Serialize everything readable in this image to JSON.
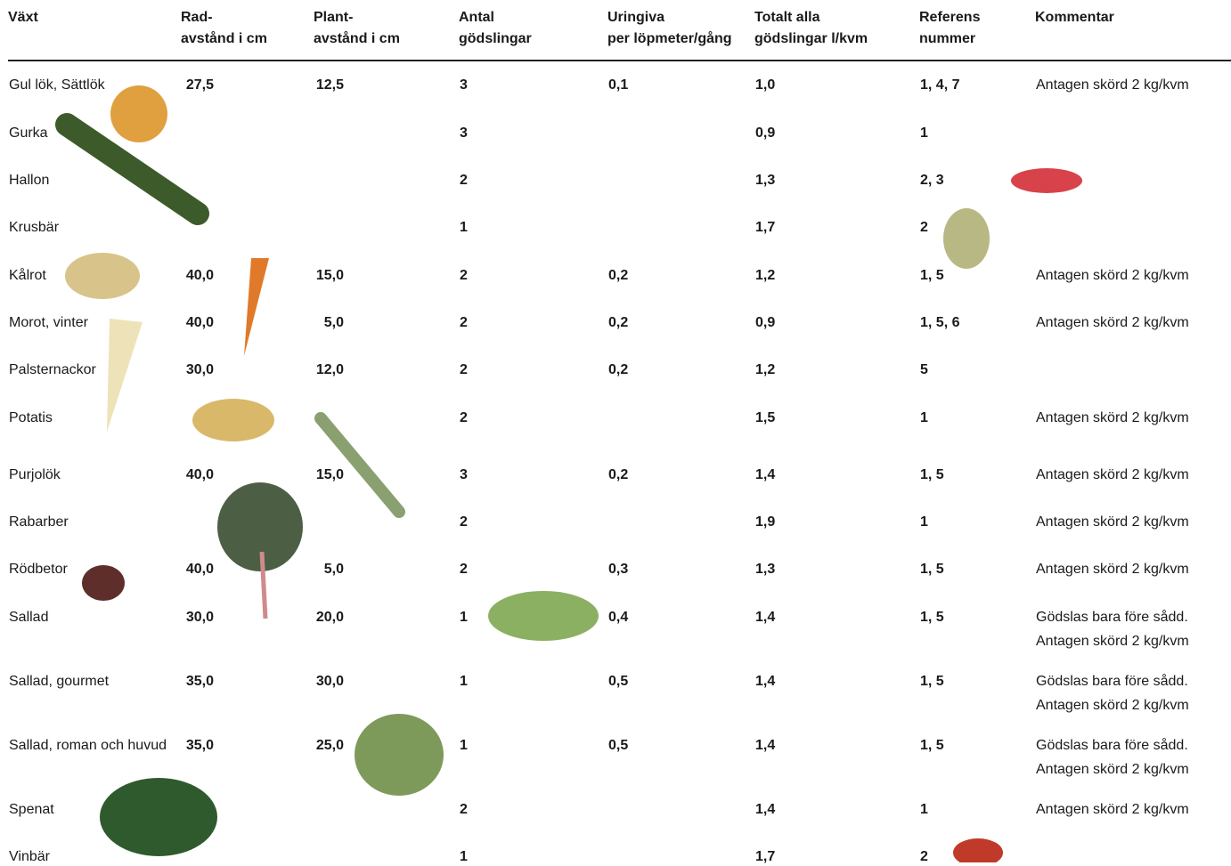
{
  "table": {
    "columns": [
      [
        "Växt"
      ],
      [
        "Rad-",
        "avstånd i cm"
      ],
      [
        "Plant-",
        "avstånd i cm"
      ],
      [
        "Antal",
        "gödslingar"
      ],
      [
        "Uringiva",
        "per löpmeter/gång"
      ],
      [
        "Totalt alla",
        "gödslingar l/kvm"
      ],
      [
        "Referens",
        "nummer"
      ],
      [
        "Kommentar"
      ]
    ],
    "rows": [
      [
        "Gul lök, Sättlök",
        "27,5",
        "12,5",
        "3",
        "0,1",
        "1,0",
        "1, 4, 7",
        [
          "Antagen skörd 2 kg/kvm"
        ]
      ],
      [
        "Gurka",
        null,
        null,
        "3",
        null,
        "0,9",
        "1",
        null
      ],
      [
        "Hallon",
        null,
        null,
        "2",
        null,
        "1,3",
        "2, 3",
        null
      ],
      [
        "Krusbär",
        null,
        null,
        "1",
        null,
        "1,7",
        "2",
        null
      ],
      [
        "Kålrot",
        "40,0",
        "15,0",
        "2",
        "0,2",
        "1,2",
        "1, 5",
        [
          "Antagen skörd 2 kg/kvm"
        ]
      ],
      [
        "Morot, vinter",
        "40,0",
        "5,0",
        "2",
        "0,2",
        "0,9",
        "1, 5, 6",
        [
          "Antagen skörd 2 kg/kvm"
        ]
      ],
      [
        "Palsternackor",
        "30,0",
        "12,0",
        "2",
        "0,2",
        "1,2",
        "5",
        null
      ],
      [
        "Potatis",
        null,
        null,
        "2",
        null,
        "1,5",
        "1",
        [
          "Antagen skörd 2 kg/kvm"
        ]
      ],
      [
        "Purjolök",
        "40,0",
        "15,0",
        "3",
        "0,2",
        "1,4",
        "1, 5",
        [
          "Antagen skörd 2 kg/kvm"
        ]
      ],
      [
        "Rabarber",
        null,
        null,
        "2",
        null,
        "1,9",
        "1",
        [
          "Antagen skörd 2 kg/kvm"
        ]
      ],
      [
        "Rödbetor",
        "40,0",
        "5,0",
        "2",
        "0,3",
        "1,3",
        "1, 5",
        [
          "Antagen skörd 2 kg/kvm"
        ]
      ],
      [
        "Sallad",
        "30,0",
        "20,0",
        "1",
        "0,4",
        "1,4",
        "1, 5",
        [
          "Gödslas bara före sådd.",
          "Antagen skörd 2 kg/kvm"
        ]
      ],
      [
        "Sallad, gourmet",
        "35,0",
        "30,0",
        "1",
        "0,5",
        "1,4",
        "1, 5",
        [
          "Gödslas bara före sådd.",
          "Antagen skörd 2 kg/kvm"
        ]
      ],
      [
        "Sallad, roman och huvud",
        "35,0",
        "25,0",
        "1",
        "0,5",
        "1,4",
        "1, 5",
        [
          "Gödslas bara före sådd.",
          "Antagen skörd 2 kg/kvm"
        ]
      ],
      [
        "Spenat",
        null,
        null,
        "2",
        null,
        "1,4",
        "1",
        [
          "Antagen skörd 2 kg/kvm"
        ]
      ],
      [
        "Vinbär",
        null,
        null,
        "1",
        null,
        "1,7",
        "2",
        null
      ]
    ]
  }
}
